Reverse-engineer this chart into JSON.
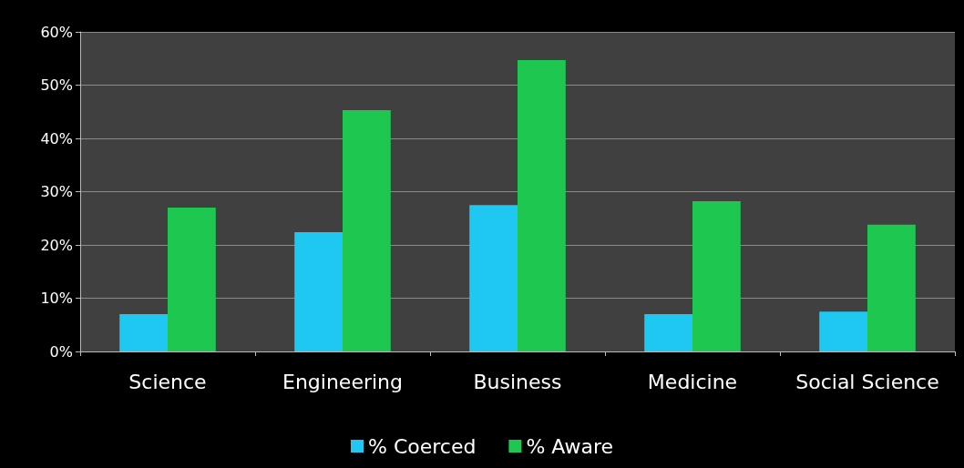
{
  "chart_data": {
    "type": "bar",
    "categories": [
      "Science",
      "Engineering",
      "Business",
      "Medicine",
      "Social Science"
    ],
    "series": [
      {
        "name": "% Coerced",
        "color": "#1ec8f0",
        "values": [
          7,
          22.4,
          27.5,
          7,
          7.5
        ]
      },
      {
        "name": "% Aware",
        "color": "#1ec850",
        "values": [
          27,
          45.3,
          54.7,
          28.2,
          23.8
        ]
      }
    ],
    "ylim": [
      0,
      60
    ],
    "yticks": [
      {
        "value": 0,
        "label": "0%"
      },
      {
        "value": 10,
        "label": "10%"
      },
      {
        "value": 20,
        "label": "20%"
      },
      {
        "value": 30,
        "label": "30%"
      },
      {
        "value": 40,
        "label": "40%"
      },
      {
        "value": 50,
        "label": "50%"
      },
      {
        "value": 60,
        "label": "60%"
      }
    ],
    "grid": "y",
    "legend": "bottom"
  }
}
